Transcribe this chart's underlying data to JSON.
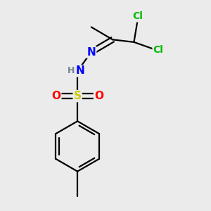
{
  "background_color": "#ebebeb",
  "bond_color": "#000000",
  "atom_colors": {
    "Cl": "#00bb00",
    "N": "#0000ff",
    "H": "#708090",
    "S": "#cccc00",
    "O": "#ff0000",
    "C": "#000000"
  },
  "figsize": [
    3.0,
    3.0
  ],
  "dpi": 100
}
